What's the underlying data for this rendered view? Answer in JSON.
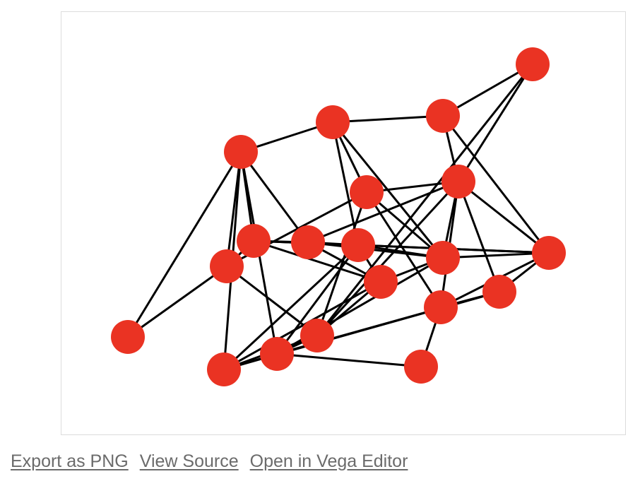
{
  "graph": {
    "node_color": "#ea3323",
    "edge_color": "#000000",
    "nodes": [
      {
        "id": "n1"
      },
      {
        "id": "n2"
      },
      {
        "id": "n3"
      },
      {
        "id": "n4"
      },
      {
        "id": "n5"
      },
      {
        "id": "n6"
      },
      {
        "id": "n7"
      },
      {
        "id": "n8"
      },
      {
        "id": "n9"
      },
      {
        "id": "n10"
      },
      {
        "id": "n11"
      },
      {
        "id": "n12"
      },
      {
        "id": "n13"
      },
      {
        "id": "n14"
      },
      {
        "id": "n15"
      },
      {
        "id": "n16"
      },
      {
        "id": "n17"
      },
      {
        "id": "n18"
      },
      {
        "id": "n19"
      },
      {
        "id": "n20"
      }
    ],
    "edges": [
      [
        "n1",
        "n5"
      ],
      [
        "n1",
        "n6"
      ],
      [
        "n2",
        "n3"
      ],
      [
        "n2",
        "n15"
      ],
      [
        "n2",
        "n14"
      ],
      [
        "n3",
        "n4"
      ],
      [
        "n3",
        "n15"
      ],
      [
        "n3",
        "n12"
      ],
      [
        "n4",
        "n5"
      ],
      [
        "n4",
        "n11"
      ],
      [
        "n4",
        "n13"
      ],
      [
        "n4",
        "n9"
      ],
      [
        "n5",
        "n6"
      ],
      [
        "n5",
        "n8"
      ],
      [
        "n5",
        "n16"
      ],
      [
        "n5",
        "n19"
      ],
      [
        "n5",
        "n7"
      ],
      [
        "n6",
        "n7"
      ],
      [
        "n6",
        "n13"
      ],
      [
        "n6",
        "n14"
      ],
      [
        "n7",
        "n8"
      ],
      [
        "n7",
        "n9"
      ],
      [
        "n7",
        "n10"
      ],
      [
        "n7",
        "n12"
      ],
      [
        "n8",
        "n9"
      ],
      [
        "n8",
        "n10"
      ],
      [
        "n8",
        "n11"
      ],
      [
        "n8",
        "n15"
      ],
      [
        "n9",
        "n10"
      ],
      [
        "n9",
        "n11"
      ],
      [
        "n9",
        "n12"
      ],
      [
        "n9",
        "n16"
      ],
      [
        "n9",
        "n19"
      ],
      [
        "n10",
        "n11"
      ],
      [
        "n10",
        "n14"
      ],
      [
        "n10",
        "n19"
      ],
      [
        "n11",
        "n12"
      ],
      [
        "n11",
        "n13"
      ],
      [
        "n11",
        "n15"
      ],
      [
        "n11",
        "n16"
      ],
      [
        "n12",
        "n17"
      ],
      [
        "n12",
        "n15"
      ],
      [
        "n12",
        "n18"
      ],
      [
        "n13",
        "n14"
      ],
      [
        "n13",
        "n15"
      ],
      [
        "n13",
        "n18"
      ],
      [
        "n14",
        "n15"
      ],
      [
        "n14",
        "n16"
      ],
      [
        "n14",
        "n19"
      ],
      [
        "n15",
        "n17"
      ],
      [
        "n15",
        "n18"
      ],
      [
        "n16",
        "n17"
      ],
      [
        "n16",
        "n19"
      ],
      [
        "n16",
        "n20"
      ],
      [
        "n17",
        "n18"
      ],
      [
        "n17",
        "n19"
      ],
      [
        "n18",
        "n20"
      ]
    ]
  },
  "actions": {
    "export_png": "Export as PNG",
    "view_source": "View Source",
    "open_editor": "Open in Vega Editor"
  }
}
